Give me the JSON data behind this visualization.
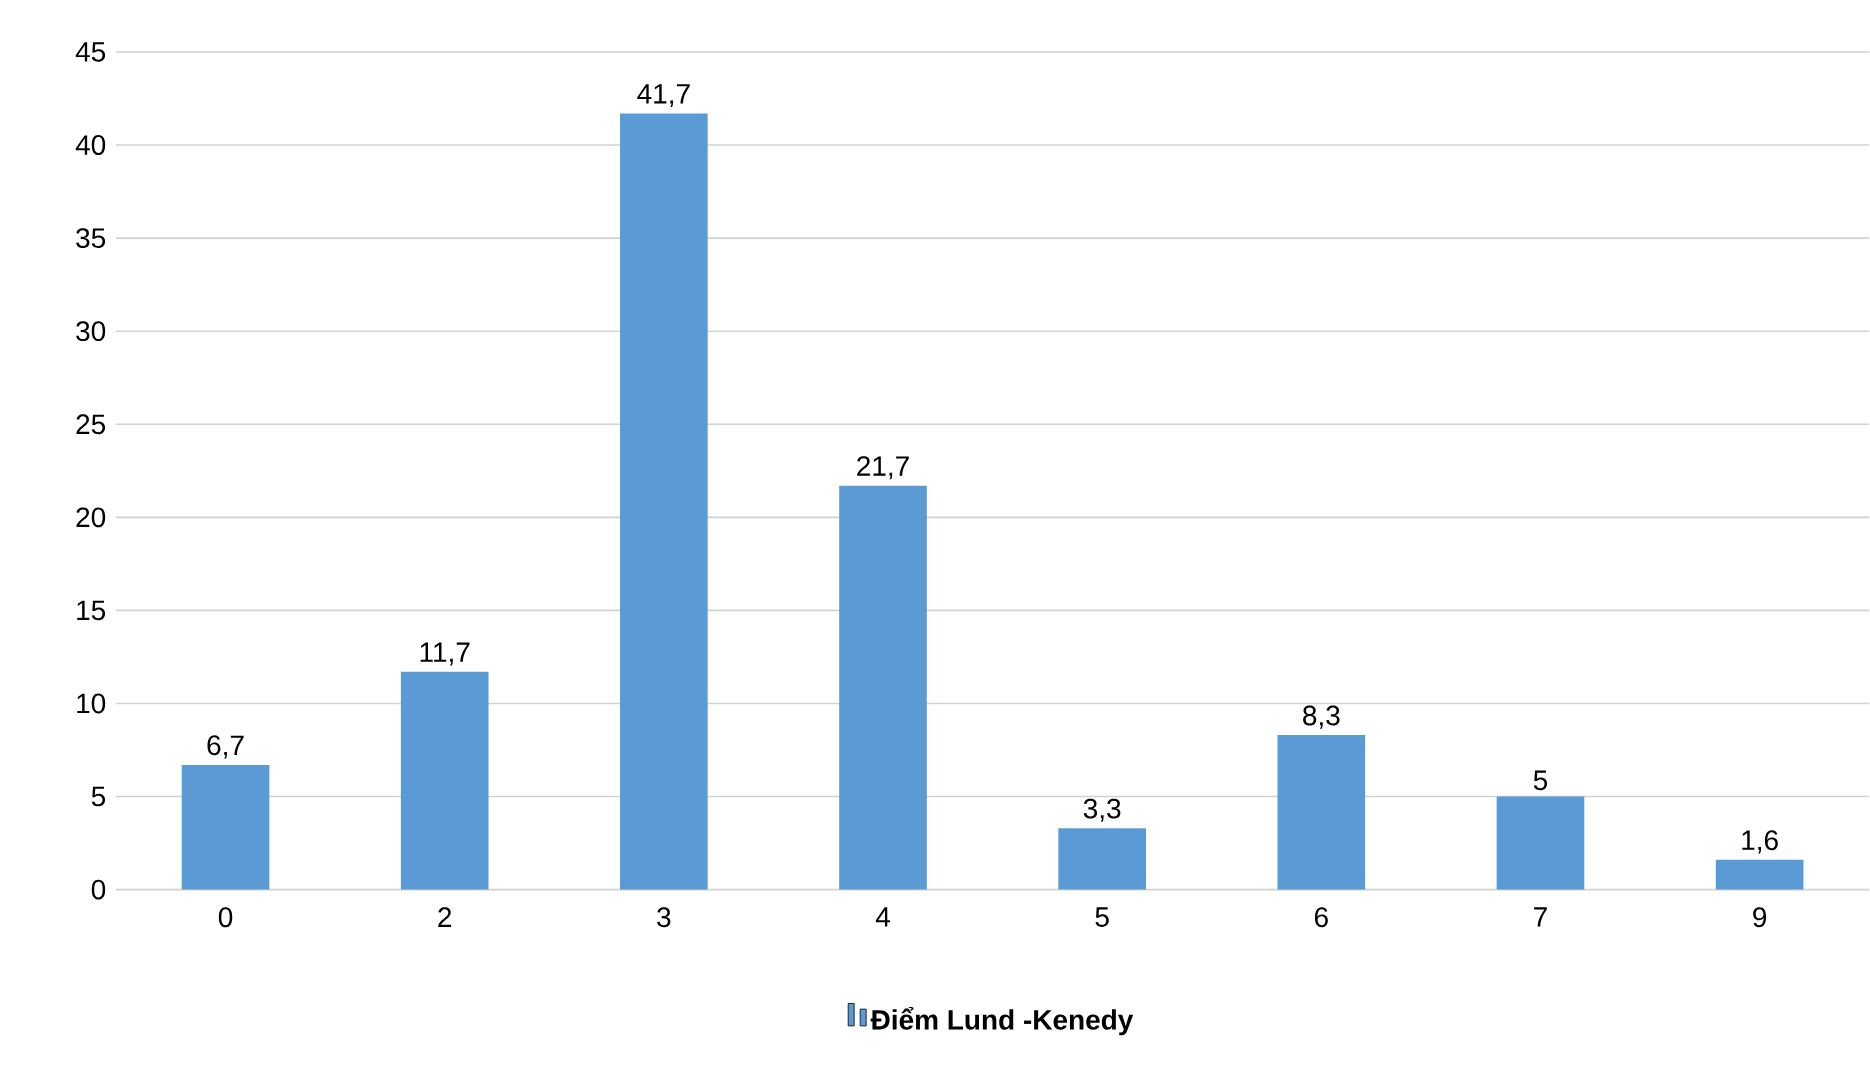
{
  "chart_data": {
    "type": "bar",
    "categories": [
      "0",
      "2",
      "3",
      "4",
      "5",
      "6",
      "7",
      "9"
    ],
    "series": [
      {
        "name": "Điểm Lund -Kenedy",
        "color": "#5b9bd5",
        "values": [
          6.7,
          11.7,
          41.7,
          21.7,
          3.3,
          8.3,
          5,
          1.6
        ],
        "value_labels": [
          "6,7",
          "11,7",
          "41,7",
          "21,7",
          "3,3",
          "8,3",
          "5",
          "1,6"
        ]
      }
    ],
    "ylim": [
      0,
      45
    ],
    "yticks": [
      0,
      5,
      10,
      15,
      20,
      25,
      30,
      35,
      40,
      45
    ],
    "grid": "y",
    "legend": "bottom"
  }
}
